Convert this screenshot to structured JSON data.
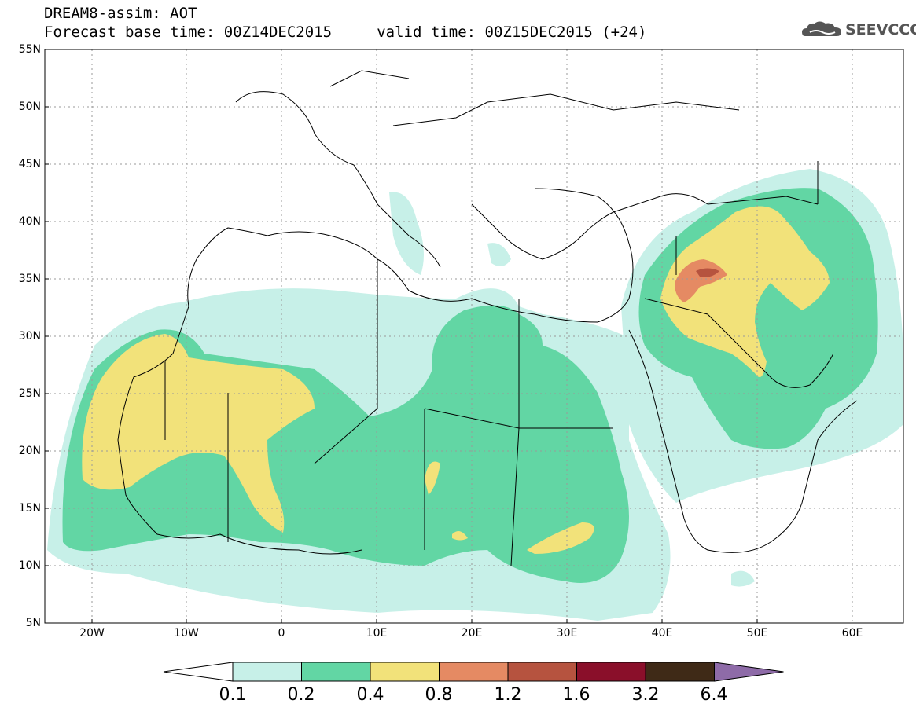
{
  "title": {
    "line1": "DREAM8-assim: AOT",
    "line2": "Forecast base time: 00Z14DEC2015     valid time: 00Z15DEC2015 (+24)"
  },
  "logo": {
    "text": "SEEVCCC",
    "icon": "cloud-logo-icon"
  },
  "map": {
    "lat_labels": [
      "55N",
      "50N",
      "45N",
      "40N",
      "35N",
      "30N",
      "25N",
      "20N",
      "15N",
      "10N",
      "5N"
    ],
    "lon_labels": [
      "20W",
      "10W",
      "0",
      "10E",
      "20E",
      "30E",
      "40E",
      "50E",
      "60E"
    ],
    "grid": true
  },
  "colorbar": {
    "labels": [
      "0.1",
      "0.2",
      "0.4",
      "0.8",
      "1.2",
      "1.6",
      "3.2",
      "6.4"
    ],
    "colors": [
      "#ffffff",
      "#c7f0e8",
      "#62d6a4",
      "#f2e27a",
      "#e58a63",
      "#b6533f",
      "#8a0f2a",
      "#3f2a17",
      "#8e6ba8"
    ]
  }
}
